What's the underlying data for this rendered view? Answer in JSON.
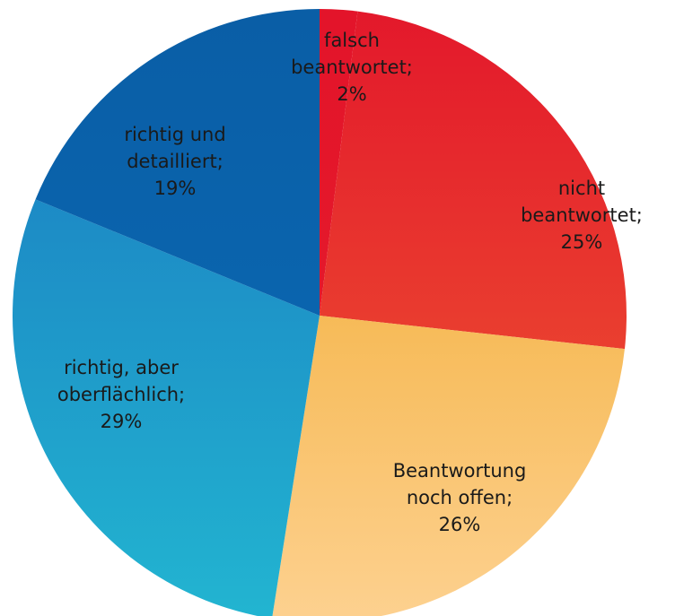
{
  "chart_data": {
    "type": "pie",
    "categories": [
      "falsch beantwortet;",
      "nicht beantwortet;",
      "Beantwortung noch offen;",
      "richtig, aber oberflächlich;",
      "richtig und detailliert;"
    ],
    "values": [
      2,
      25,
      26,
      29,
      19
    ],
    "value_labels": [
      "2%",
      "25%",
      "26%",
      "29%",
      "19%"
    ],
    "gradients": [
      [
        "#e3142a",
        "#e51e2c"
      ],
      [
        "#e3182b",
        "#ef5e33"
      ],
      [
        "#f0a41f",
        "#fdd190"
      ],
      [
        "#1a77c0",
        "#22b5d1"
      ],
      [
        "#0a5ea6",
        "#0a6bb6"
      ]
    ]
  }
}
